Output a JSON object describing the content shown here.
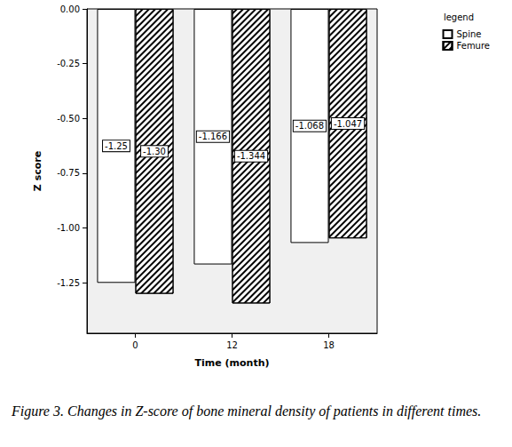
{
  "chart_data": {
    "type": "bar",
    "title": "Figure 3. Changes in Z-score of bone mineral density of patients in different times.",
    "x_label": "Time (month)",
    "y_label": "Z score",
    "legend_title": "legend",
    "legend": "top-right",
    "categories": [
      "0",
      "12",
      "18"
    ],
    "series": [
      {
        "name": "Spine",
        "color": "#ffffff",
        "values": [
          -1.25,
          -1.166,
          -1.068
        ],
        "value_labels": [
          "-1.25",
          "-1.166",
          "-1.068"
        ]
      },
      {
        "name": "Femure",
        "color": "#000000",
        "values": [
          -1.3,
          -1.344,
          -1.047
        ],
        "value_labels": [
          "-1.30",
          "-1.344",
          "-1.047"
        ]
      }
    ],
    "ylim": [
      -1.48,
      0
    ],
    "yticks": [
      {
        "value": 0,
        "label": "0.00"
      },
      {
        "value": -0.25,
        "label": "-0.25"
      },
      {
        "value": -0.5,
        "label": "-0.50"
      },
      {
        "value": -0.75,
        "label": "-0.75"
      },
      {
        "value": -1,
        "label": "-1.00"
      },
      {
        "value": -1.25,
        "label": "-1.25"
      }
    ],
    "grid": false,
    "data_labels": true
  }
}
